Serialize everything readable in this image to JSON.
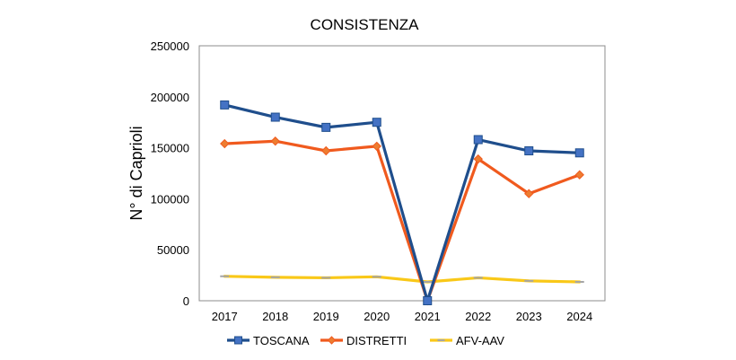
{
  "chart_data": {
    "type": "line",
    "title": "CONSISTENZA",
    "xlabel": "",
    "ylabel": "N° di Caprioli",
    "ylim": [
      0,
      250000
    ],
    "y_ticks": [
      "0",
      "50000",
      "100000",
      "150000",
      "200000",
      "250000"
    ],
    "grid": false,
    "legend_position": "bottom",
    "categories": [
      "2017",
      "2018",
      "2019",
      "2020",
      "2021",
      "2022",
      "2023",
      "2024"
    ],
    "series": [
      {
        "name": "TOSCANA",
        "color": "#1f4e8c",
        "marker": "square",
        "values": [
          192000,
          180000,
          170000,
          175000,
          0,
          158000,
          147000,
          145000
        ]
      },
      {
        "name": "DISTRETTI",
        "color": "#f05a1e",
        "marker": "diamond",
        "values": [
          154000,
          156500,
          147000,
          151500,
          0,
          139000,
          105000,
          123500
        ]
      },
      {
        "name": "AFV-AAV",
        "color": "#f9c818",
        "marker": "dash",
        "values": [
          24000,
          23000,
          22500,
          23500,
          18500,
          22500,
          19500,
          18500
        ]
      }
    ]
  }
}
